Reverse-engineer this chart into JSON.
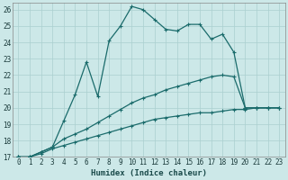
{
  "xlabel": "Humidex (Indice chaleur)",
  "xlim": [
    -0.5,
    23.5
  ],
  "ylim": [
    17,
    26.4
  ],
  "xticks": [
    0,
    1,
    2,
    3,
    4,
    5,
    6,
    7,
    8,
    9,
    10,
    11,
    12,
    13,
    14,
    15,
    16,
    17,
    18,
    19,
    20,
    21,
    22,
    23
  ],
  "yticks": [
    17,
    18,
    19,
    20,
    21,
    22,
    23,
    24,
    25,
    26
  ],
  "bg_color": "#cce8e8",
  "grid_color": "#aacfcf",
  "line_color": "#1a6b6b",
  "line1_x": [
    0,
    1,
    2,
    3,
    4,
    5,
    6,
    7,
    8,
    9,
    10,
    11,
    12,
    13,
    14,
    15,
    16,
    17,
    18,
    19,
    20,
    21,
    22,
    23
  ],
  "line1_y": [
    17.0,
    17.0,
    17.3,
    17.6,
    19.2,
    20.8,
    22.8,
    20.7,
    24.1,
    25.0,
    26.2,
    26.0,
    25.4,
    24.8,
    24.7,
    25.1,
    25.1,
    24.2,
    24.5,
    23.4,
    20.0,
    20.0,
    20.0,
    20.0
  ],
  "line2_x": [
    0,
    1,
    2,
    3,
    4,
    5,
    6,
    7,
    8,
    9,
    10,
    11,
    12,
    13,
    14,
    15,
    16,
    17,
    18,
    19,
    20,
    21,
    22,
    23
  ],
  "line2_y": [
    17.0,
    17.0,
    17.3,
    17.6,
    18.1,
    18.4,
    18.7,
    19.1,
    19.5,
    19.9,
    20.3,
    20.6,
    20.8,
    21.1,
    21.3,
    21.5,
    21.7,
    21.9,
    22.0,
    21.9,
    20.0,
    20.0,
    20.0,
    20.0
  ],
  "line3_x": [
    0,
    1,
    2,
    3,
    4,
    5,
    6,
    7,
    8,
    9,
    10,
    11,
    12,
    13,
    14,
    15,
    16,
    17,
    18,
    19,
    20,
    21,
    22,
    23
  ],
  "line3_y": [
    17.0,
    17.0,
    17.2,
    17.5,
    17.7,
    17.9,
    18.1,
    18.3,
    18.5,
    18.7,
    18.9,
    19.1,
    19.3,
    19.4,
    19.5,
    19.6,
    19.7,
    19.7,
    19.8,
    19.9,
    19.9,
    20.0,
    20.0,
    20.0
  ]
}
